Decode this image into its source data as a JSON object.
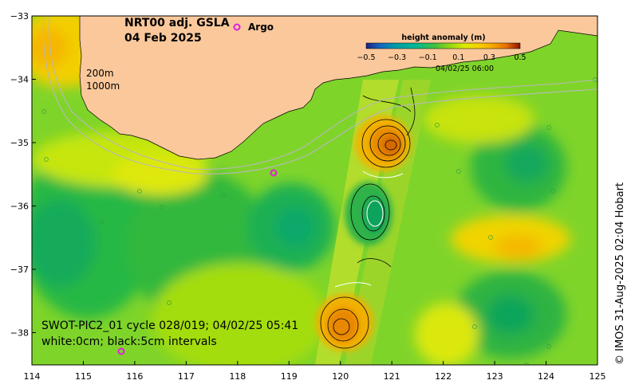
{
  "title": {
    "line1": "NRT00 adj. GSLA",
    "line2": "04 Feb 2025"
  },
  "legend": {
    "argo_symbol": "o",
    "argo_label": "Argo"
  },
  "colorbar": {
    "title": "height anomaly (m)",
    "tick_labels": [
      "−0.5",
      "−0.3",
      "−0.1",
      "0.1",
      "0.3",
      "0.5"
    ],
    "colors": [
      "#1a237e",
      "#1565c0",
      "#0097a7",
      "#00b894",
      "#43c13b",
      "#9ad811",
      "#dcec05",
      "#f7d000",
      "#f5a800",
      "#e87000",
      "#c43a00",
      "#8b1200"
    ],
    "timestamp": "04/02/25 06:00"
  },
  "depth_labels": [
    "200m",
    "1000m"
  ],
  "axes": {
    "x_ticks": [
      "114",
      "115",
      "116",
      "117",
      "118",
      "119",
      "120",
      "121",
      "122",
      "123",
      "124",
      "125"
    ],
    "y_ticks": [
      "−33",
      "−34",
      "−35",
      "−36",
      "−37",
      "−38"
    ]
  },
  "swot": {
    "line1": "SWOT-PIC2_01 cycle 028/019; 04/02/25 05:41",
    "line2": "white:0cm; black:5cm intervals"
  },
  "credit": "© IMOS 31-Aug-2025 02:04 Hobart",
  "colors": {
    "land": "#fac89b",
    "ocean_base": "#7fd42a",
    "argo": "#e020e0"
  }
}
